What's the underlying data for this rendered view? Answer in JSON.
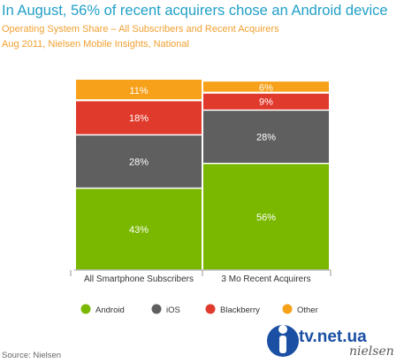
{
  "header": {
    "title": "In August, 56% of recent acquirers chose an Android device",
    "subtitle1": "Operating System Share – All Subscribers and Recent Acquirers",
    "subtitle2": "Aug 2011, Nielsen Mobile Insights, National"
  },
  "footer": {
    "source": "Source: Nielsen"
  },
  "watermark": {
    "site": "tv.net.ua",
    "logo": "nielsen"
  },
  "colors": {
    "Android": "#7ab800",
    "iOS": "#5f5f5f",
    "Blackberry": "#e03a2c",
    "Other": "#f7a11a"
  },
  "chart_data": {
    "type": "bar",
    "stacked": true,
    "categories": [
      "All Smartphone Subscribers",
      "3 Mo Recent Acquirers"
    ],
    "series": [
      {
        "name": "Android",
        "values": [
          43,
          56
        ]
      },
      {
        "name": "iOS",
        "values": [
          28,
          28
        ]
      },
      {
        "name": "Blackberry",
        "values": [
          18,
          9
        ]
      },
      {
        "name": "Other",
        "values": [
          11,
          6
        ]
      }
    ],
    "data_labels": [
      [
        "43%",
        "28%",
        "18%",
        "11%"
      ],
      [
        "56%",
        "28%",
        "9%",
        "6%"
      ]
    ],
    "ylim": [
      0,
      100
    ],
    "legend_position": "bottom",
    "grid": false
  }
}
